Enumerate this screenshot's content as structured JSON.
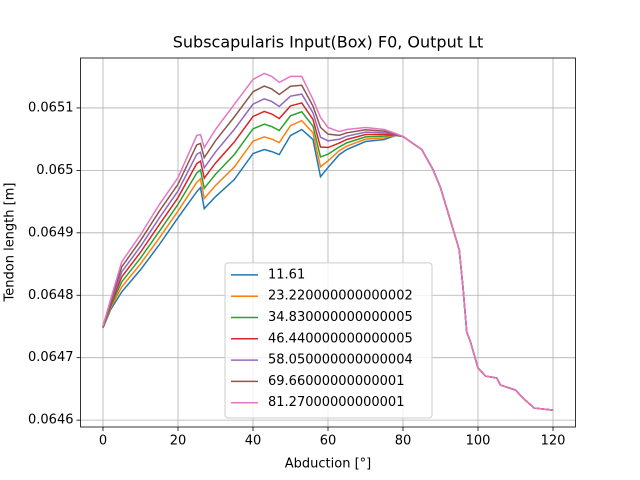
{
  "chart_data": {
    "type": "line",
    "title": "Subscapularis Input(Box) F0, Output Lt",
    "x_label": "Abduction [°]",
    "y_label": "Tendon length [m]",
    "x": [
      0,
      2,
      5,
      10,
      15,
      20,
      25,
      26,
      27,
      30,
      35,
      40,
      43,
      45,
      47,
      50,
      53,
      56,
      58,
      60,
      63,
      65,
      70,
      75,
      78,
      80,
      85,
      88,
      90,
      95,
      96,
      97,
      98,
      100,
      102,
      105,
      106,
      110,
      112,
      115,
      120
    ],
    "series": [
      {
        "name": "11.61",
        "color": "#1f77b4",
        "values": [
          0.0647477,
          0.0647766,
          0.0648054,
          0.0648408,
          0.0648809,
          0.0649242,
          0.0649659,
          0.0649724,
          0.0649387,
          0.0649579,
          0.0649852,
          0.0650269,
          0.0650334,
          0.0650301,
          0.0650253,
          0.0650558,
          0.0650655,
          0.0650494,
          0.06499,
          0.0650045,
          0.0650253,
          0.0650334,
          0.0650462,
          0.0650494,
          0.0650558,
          0.0650542,
          0.0650334,
          0.0650013,
          0.0649724,
          0.0648729,
          0.0648122,
          0.0647412,
          0.0647252,
          0.0646835,
          0.0646706,
          0.0646674,
          0.0646562,
          0.0646482,
          0.0646353,
          0.0646193,
          0.0646161
        ]
      },
      {
        "name": "23.220000000000002",
        "color": "#ff7f0e",
        "values": [
          0.0647482,
          0.0647793,
          0.0648134,
          0.0648502,
          0.0648916,
          0.0649349,
          0.0649809,
          0.0649866,
          0.064955,
          0.0649758,
          0.0650053,
          0.0650467,
          0.0650537,
          0.0650502,
          0.0650446,
          0.0650716,
          0.0650797,
          0.0650601,
          0.0650058,
          0.0650152,
          0.0650315,
          0.0650388,
          0.06505,
          0.0650521,
          0.0650564,
          0.0650542,
          0.0650334,
          0.0650013,
          0.0649724,
          0.0648729,
          0.0648122,
          0.0647412,
          0.0647252,
          0.0646835,
          0.0646706,
          0.0646674,
          0.0646562,
          0.0646482,
          0.0646353,
          0.0646193,
          0.0646161
        ]
      },
      {
        "name": "34.830000000000005",
        "color": "#2ca02c",
        "values": [
          0.0647488,
          0.0647819,
          0.0648215,
          0.0648595,
          0.0649023,
          0.0649456,
          0.0649959,
          0.0650007,
          0.0649713,
          0.0649938,
          0.0650253,
          0.0650665,
          0.065074,
          0.0650702,
          0.0650638,
          0.0650874,
          0.0650938,
          0.0650708,
          0.0650216,
          0.0650259,
          0.0650376,
          0.0650441,
          0.0650537,
          0.0650548,
          0.0650569,
          0.0650542,
          0.0650334,
          0.0650013,
          0.0649724,
          0.0648729,
          0.0648122,
          0.0647412,
          0.0647252,
          0.0646835,
          0.0646706,
          0.0646674,
          0.0646562,
          0.0646482,
          0.0646353,
          0.0646193,
          0.0646161
        ]
      },
      {
        "name": "46.440000000000005",
        "color": "#d62728",
        "values": [
          0.0647493,
          0.0647846,
          0.0648295,
          0.0648689,
          0.064913,
          0.0649563,
          0.0650109,
          0.0650149,
          0.0649877,
          0.0650117,
          0.0650454,
          0.0650863,
          0.0650944,
          0.0650903,
          0.0650831,
          0.0651032,
          0.065108,
          0.0650815,
          0.0650374,
          0.0650366,
          0.0650438,
          0.0650495,
          0.0650575,
          0.0650575,
          0.0650575,
          0.0650542,
          0.0650334,
          0.0650013,
          0.0649724,
          0.0648729,
          0.0648122,
          0.0647412,
          0.0647252,
          0.0646835,
          0.0646706,
          0.0646674,
          0.0646562,
          0.0646482,
          0.0646353,
          0.0646193,
          0.0646161
        ]
      },
      {
        "name": "58.050000000000004",
        "color": "#9467bd",
        "values": [
          0.0647498,
          0.0647873,
          0.0648375,
          0.0648782,
          0.0649237,
          0.064967,
          0.0650258,
          0.0650291,
          0.065004,
          0.0650296,
          0.0650655,
          0.0651061,
          0.0651147,
          0.0651104,
          0.0651024,
          0.0651189,
          0.0651222,
          0.0650922,
          0.0650531,
          0.0650473,
          0.0650499,
          0.0650548,
          0.0650612,
          0.0650601,
          0.065058,
          0.0650542,
          0.0650334,
          0.0650013,
          0.0649724,
          0.0648729,
          0.0648122,
          0.0647412,
          0.0647252,
          0.0646835,
          0.0646706,
          0.0646674,
          0.0646562,
          0.0646482,
          0.0646353,
          0.0646193,
          0.0646161
        ]
      },
      {
        "name": "69.66000000000001",
        "color": "#8c564b",
        "values": [
          0.0647504,
          0.0647899,
          0.0648456,
          0.0648876,
          0.0649344,
          0.0649777,
          0.0650408,
          0.0650432,
          0.0650203,
          0.0650476,
          0.0650855,
          0.0651259,
          0.065135,
          0.0651304,
          0.0651216,
          0.0651347,
          0.0651363,
          0.0651029,
          0.0650689,
          0.065058,
          0.0650561,
          0.0650602,
          0.065065,
          0.0650628,
          0.0650586,
          0.0650542,
          0.0650334,
          0.0650013,
          0.0649724,
          0.0648729,
          0.0648122,
          0.0647412,
          0.0647252,
          0.0646835,
          0.0646706,
          0.0646674,
          0.0646562,
          0.0646482,
          0.0646353,
          0.0646193,
          0.0646161
        ]
      },
      {
        "name": "81.27000000000001",
        "color": "#e377c2",
        "values": [
          0.0647509,
          0.0647926,
          0.0648536,
          0.0648969,
          0.0649451,
          0.0649884,
          0.0650558,
          0.0650574,
          0.0650366,
          0.0650655,
          0.0651056,
          0.0651457,
          0.0651553,
          0.0651505,
          0.0651409,
          0.0651505,
          0.0651505,
          0.0651136,
          0.0650847,
          0.0650687,
          0.0650622,
          0.0650655,
          0.0650687,
          0.0650655,
          0.0650591,
          0.0650542,
          0.0650334,
          0.0650013,
          0.0649724,
          0.0648729,
          0.0648122,
          0.0647412,
          0.0647252,
          0.0646835,
          0.0646706,
          0.0646674,
          0.0646562,
          0.0646482,
          0.0646353,
          0.0646193,
          0.0646161
        ]
      }
    ],
    "xlim": [
      -6,
      126
    ],
    "xticks": [
      0,
      20,
      40,
      60,
      80,
      100,
      120
    ],
    "ylim": [
      0.064589,
      0.06518
    ],
    "yticks": [
      0.0646,
      0.0647,
      0.0648,
      0.0649,
      0.065,
      0.0651
    ],
    "grid": true,
    "legend": "lower center"
  }
}
